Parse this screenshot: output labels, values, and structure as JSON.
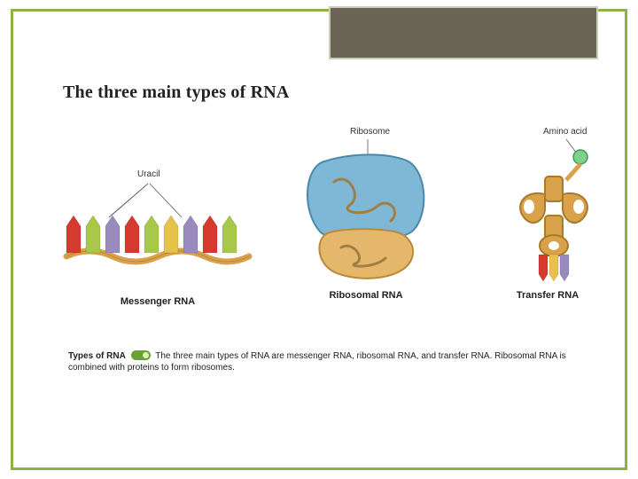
{
  "title": "The three main types of RNA",
  "panels": {
    "mrna": {
      "heading": "Messenger RNA",
      "callout": "Uracil",
      "strand_color": "#d9a24a",
      "bases": [
        {
          "c": "#d63a2e"
        },
        {
          "c": "#a7c84a"
        },
        {
          "c": "#9a8bbe"
        },
        {
          "c": "#d63a2e"
        },
        {
          "c": "#a7c84a"
        },
        {
          "c": "#e7c24a"
        },
        {
          "c": "#9a8bbe"
        },
        {
          "c": "#d63a2e"
        },
        {
          "c": "#a7c84a"
        }
      ]
    },
    "rrna": {
      "heading": "Ribosomal RNA",
      "callout": "Ribosome",
      "large_color": "#7fb7d6",
      "large_edge": "#4b88ab",
      "small_color": "#e4b76a",
      "small_edge": "#b98a3a",
      "rna_line": "#a07f45"
    },
    "trna": {
      "heading": "Transfer RNA",
      "callout": "Amino acid",
      "body_color": "#d9a24a",
      "body_edge": "#a97a2a",
      "amino_color": "#7fcf8f",
      "amino_edge": "#3f9a57",
      "anticodon": [
        "#d63a2e",
        "#e7c24a",
        "#9a8bbe"
      ]
    }
  },
  "caption": {
    "lead": "Types of RNA",
    "text1": "The three main types of RNA are messenger RNA, ribosomal RNA, and transfer RNA.",
    "text2": "Ribosomal RNA is combined with proteins to form ribosomes."
  },
  "frame": {
    "border_color": "#8bb33e",
    "corner_bg": "#6b6558",
    "corner_border": "#cfcbb9"
  }
}
